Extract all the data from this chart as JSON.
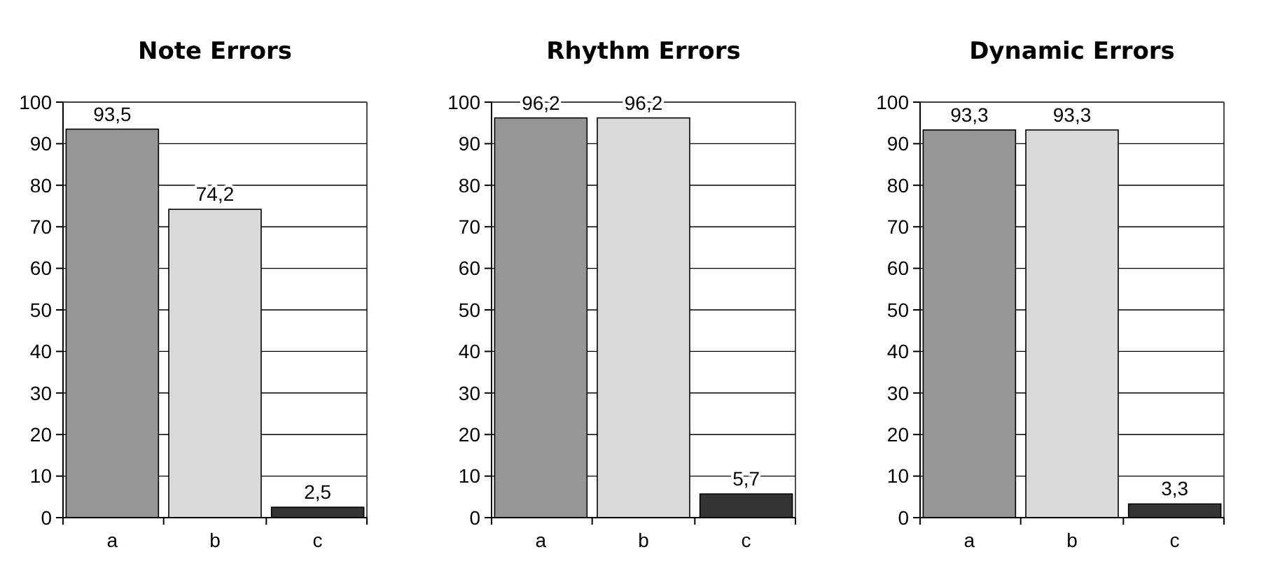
{
  "chart_data": [
    {
      "type": "bar",
      "title": "Note Errors",
      "categories": [
        "a",
        "b",
        "c"
      ],
      "values": [
        93.5,
        74.2,
        2.5
      ],
      "colors": [
        "#969696",
        "#d9d9d9",
        "#333333"
      ],
      "value_labels": [
        "93,5",
        "74,2",
        "2,5"
      ],
      "ylim": [
        0,
        100
      ],
      "yticks": [
        0,
        10,
        20,
        30,
        40,
        50,
        60,
        70,
        80,
        90,
        100
      ],
      "grid": "y"
    },
    {
      "type": "bar",
      "title": "Rhythm Errors",
      "categories": [
        "a",
        "b",
        "c"
      ],
      "values": [
        96.2,
        96.2,
        5.7
      ],
      "colors": [
        "#969696",
        "#d9d9d9",
        "#333333"
      ],
      "value_labels": [
        "96,2",
        "96,2",
        "5,7"
      ],
      "ylim": [
        0,
        100
      ],
      "yticks": [
        0,
        10,
        20,
        30,
        40,
        50,
        60,
        70,
        80,
        90,
        100
      ],
      "grid": "y"
    },
    {
      "type": "bar",
      "title": "Dynamic Errors",
      "categories": [
        "a",
        "b",
        "c"
      ],
      "values": [
        93.3,
        93.3,
        3.3
      ],
      "colors": [
        "#969696",
        "#d9d9d9",
        "#333333"
      ],
      "value_labels": [
        "93,3",
        "93,3",
        "3,3"
      ],
      "ylim": [
        0,
        100
      ],
      "yticks": [
        0,
        10,
        20,
        30,
        40,
        50,
        60,
        70,
        80,
        90,
        100
      ],
      "grid": "y"
    }
  ]
}
